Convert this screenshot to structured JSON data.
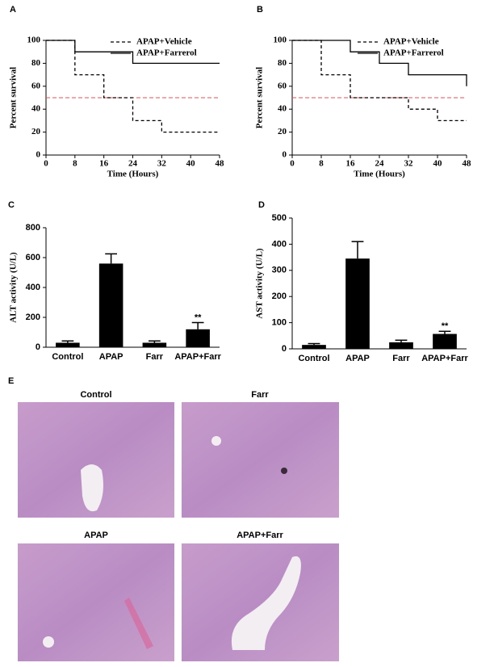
{
  "chart_data": [
    {
      "type": "step",
      "label": "A",
      "xlabel": "Time (Hours)",
      "ylabel": "Percent survival",
      "x": [
        0,
        8,
        16,
        24,
        32,
        40,
        48
      ],
      "xlim": [
        0,
        48
      ],
      "xticks": [
        0,
        8,
        16,
        24,
        32,
        40,
        48
      ],
      "ylim": [
        0,
        100
      ],
      "yticks": [
        0,
        20,
        40,
        60,
        80,
        100
      ],
      "series": [
        {
          "name": "APAP+Vehicle",
          "color": "#000000",
          "line_style": "dashed",
          "values": [
            100,
            70,
            50,
            30,
            20,
            20,
            20
          ]
        },
        {
          "name": "APAP+Farrerol",
          "color": "#000000",
          "line_style": "solid",
          "values": [
            100,
            90,
            90,
            80,
            80,
            80,
            80
          ]
        }
      ],
      "reference_line": {
        "value": 50,
        "color": "#e05050"
      },
      "legend": "top-right"
    },
    {
      "type": "step",
      "label": "B",
      "xlabel": "Time (Hours)",
      "ylabel": "Percent survival",
      "x": [
        0,
        8,
        16,
        24,
        32,
        40,
        48
      ],
      "xlim": [
        0,
        48
      ],
      "xticks": [
        0,
        8,
        16,
        24,
        32,
        40,
        48
      ],
      "ylim": [
        0,
        100
      ],
      "yticks": [
        0,
        20,
        40,
        60,
        80,
        100
      ],
      "series": [
        {
          "name": "APAP+Vehicle",
          "color": "#000000",
          "line_style": "dashed",
          "values": [
            100,
            70,
            50,
            50,
            40,
            30,
            30
          ]
        },
        {
          "name": "APAP+Farrerol",
          "color": "#000000",
          "line_style": "solid",
          "values": [
            100,
            100,
            90,
            80,
            70,
            70,
            60
          ]
        }
      ],
      "reference_line": {
        "value": 50,
        "color": "#e05050"
      },
      "legend": "top-right"
    },
    {
      "type": "bar",
      "label": "C",
      "ylabel": "ALT activity (U/L)",
      "categories": [
        "Control",
        "APAP",
        "Farr",
        "APAP+Farr"
      ],
      "values": [
        30,
        560,
        30,
        120
      ],
      "errors": [
        12,
        65,
        12,
        45
      ],
      "color": "#000000",
      "significance": [
        null,
        null,
        null,
        "**"
      ],
      "ylim": [
        0,
        800
      ],
      "yticks": [
        0,
        200,
        400,
        600,
        800
      ]
    },
    {
      "type": "bar",
      "label": "D",
      "ylabel": "AST activity (U/L)",
      "categories": [
        "Control",
        "APAP",
        "Farr",
        "APAP+Farr"
      ],
      "values": [
        15,
        345,
        25,
        57
      ],
      "errors": [
        5,
        65,
        8,
        10
      ],
      "color": "#000000",
      "significance": [
        null,
        null,
        null,
        "**"
      ],
      "ylim": [
        0,
        500
      ],
      "yticks": [
        0,
        100,
        200,
        300,
        400,
        500
      ]
    }
  ],
  "histology": {
    "label": "E",
    "panels": [
      "Control",
      "Farr",
      "APAP",
      "APAP+Farr"
    ]
  }
}
